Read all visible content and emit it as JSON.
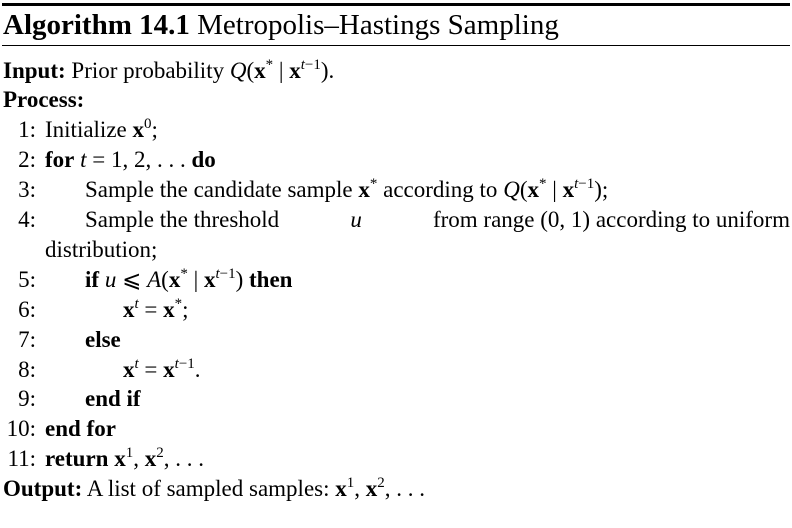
{
  "algorithm": {
    "label": "Algorithm 14.1",
    "title": "Metropolis–Hastings Sampling"
  },
  "input": {
    "label": "Input:",
    "text": "Prior probability"
  },
  "process_label": "Process:",
  "output": {
    "label": "Output:",
    "text": "A list of sampled samples:"
  },
  "lines": {
    "l1": {
      "num": "1:",
      "text": "Initialize"
    },
    "l2": {
      "num": "2:",
      "for_kw": "for",
      "do_kw": "do"
    },
    "l3": {
      "num": "3:",
      "text": "Sample the candidate sample",
      "text2": "according to"
    },
    "l4": {
      "num": "4:",
      "text": "Sample the threshold",
      "text2": "from range (0, 1) according to uniform",
      "cont": "distribution;"
    },
    "l5": {
      "num": "5:",
      "if_kw": "if",
      "then_kw": "then"
    },
    "l6": {
      "num": "6:"
    },
    "l7": {
      "num": "7:",
      "else_kw": "else"
    },
    "l8": {
      "num": "8:"
    },
    "l9": {
      "num": "9:",
      "endif_kw": "end if"
    },
    "l10": {
      "num": "10:",
      "endfor_kw": "end for"
    },
    "l11": {
      "num": "11:",
      "return_kw": "return"
    }
  }
}
